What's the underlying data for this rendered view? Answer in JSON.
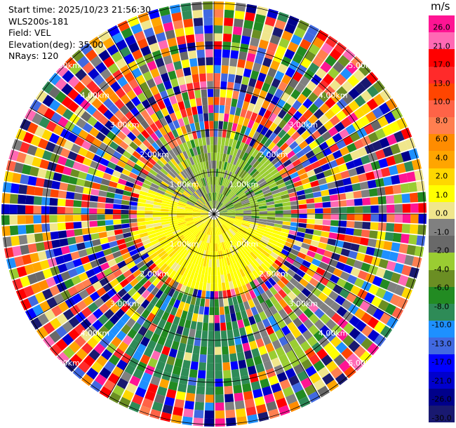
{
  "info": {
    "start_time": "Start time: 2025/10/23 21:56:30",
    "instrument": "WLS200s-181",
    "field": "Field: VEL",
    "elevation": "Elevation(deg): 35.00",
    "nrays": "NRays: 120"
  },
  "colorbar": {
    "unit": "m/s",
    "ticks": [
      "26.0",
      "21.0",
      "17.0",
      "13.0",
      "10.0",
      "8.0",
      "6.0",
      "4.0",
      "2.0",
      "1.0",
      "0.0",
      "-1.0",
      "-2.0",
      "-4.0",
      "-6.0",
      "-8.0",
      "-10.0",
      "-13.0",
      "-17.0",
      "-21.0",
      "-26.0",
      "-30.0"
    ],
    "colors": [
      "#ff1493",
      "#ff69b4",
      "#ff0000",
      "#ff2a2a",
      "#ff4500",
      "#ff6347",
      "#ff7f50",
      "#ff8c00",
      "#ffa500",
      "#ffd700",
      "#ffff00",
      "#f0e68c",
      "#808080",
      "#696969",
      "#9acd32",
      "#6b8e23",
      "#228b22",
      "#2e8b57",
      "#1e90ff",
      "#4169e1",
      "#0000ff",
      "#0000cd",
      "#00008b",
      "#191970"
    ]
  },
  "chart_data": {
    "type": "heatmap",
    "field": "VEL",
    "unit": "m/s",
    "nrays": 120,
    "elevation_deg": 35.0,
    "range_ring_labels": [
      "1.00km",
      "2.00km",
      "3.00km",
      "4.00km",
      "5.00km"
    ],
    "colorbar_range": [
      -30.0,
      26.0
    ]
  }
}
